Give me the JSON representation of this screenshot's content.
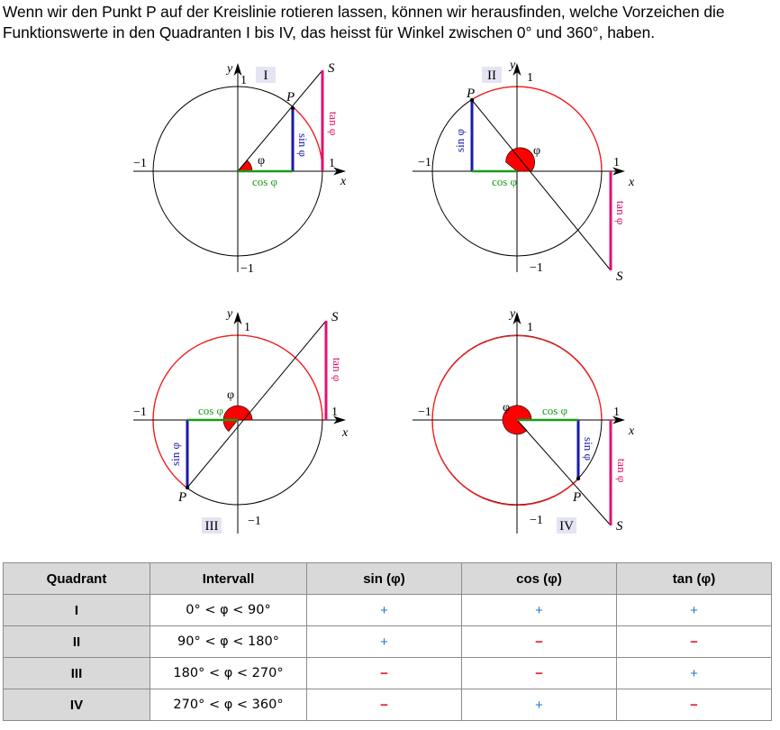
{
  "intro_text": "Wenn wir den Punkt P auf der Kreislinie rotieren lassen, können wir herausfinden, welche Vorzeichen die Funktionswerte in den Quadranten I bis IV, das heisst für Winkel zwischen 0° und 360°, haben.",
  "colors": {
    "red": "#ff1a1a",
    "blue": "#1a1aa8",
    "green": "#1a9a1a",
    "magenta": "#e0136e",
    "gray_header": "#d9d9d9",
    "plus": "#1f77c9",
    "minus": "#e8202a",
    "badge": "#e4e4f4"
  },
  "diagrams": [
    {
      "quadrant": "I",
      "labels": {
        "x": "x",
        "y": "y",
        "one_x": "1",
        "one_y": "1",
        "neg_one_x": "−1",
        "neg_one_y": "−1",
        "P": "P",
        "S": "S",
        "phi": "φ",
        "sin": "sin φ",
        "cos": "cos φ",
        "tan": "tan φ"
      }
    },
    {
      "quadrant": "II",
      "labels": {
        "x": "x",
        "y": "y",
        "one_x": "1",
        "one_y": "1",
        "neg_one_x": "−1",
        "neg_one_y": "−1",
        "P": "P",
        "S": "S",
        "phi": "φ",
        "sin": "sin φ",
        "cos": "cos φ",
        "tan": "tan φ"
      }
    },
    {
      "quadrant": "III",
      "labels": {
        "x": "x",
        "y": "y",
        "one_x": "1",
        "one_y": "1",
        "neg_one_x": "−1",
        "neg_one_y": "−1",
        "P": "P",
        "S": "S",
        "phi": "φ",
        "sin": "sin φ",
        "cos": "cos φ",
        "tan": "tan φ"
      }
    },
    {
      "quadrant": "IV",
      "labels": {
        "x": "x",
        "y": "y",
        "one_x": "1",
        "one_y": "1",
        "neg_one_x": "−1",
        "neg_one_y": "−1",
        "P": "P",
        "S": "S",
        "phi": "φ",
        "sin": "sin φ",
        "cos": "cos φ",
        "tan": "tan φ"
      }
    }
  ],
  "table": {
    "headers": [
      "Quadrant",
      "Intervall",
      "sin (φ)",
      "cos (φ)",
      "tan (φ)"
    ],
    "rows": [
      {
        "quadrant": "I",
        "interval": "0° < φ < 90°",
        "sin": "+",
        "cos": "+",
        "tan": "+"
      },
      {
        "quadrant": "II",
        "interval": "90° < φ < 180°",
        "sin": "+",
        "cos": "−",
        "tan": "−"
      },
      {
        "quadrant": "III",
        "interval": "180° < φ < 270°",
        "sin": "−",
        "cos": "−",
        "tan": "+"
      },
      {
        "quadrant": "IV",
        "interval": "270° < φ < 360°",
        "sin": "−",
        "cos": "+",
        "tan": "−"
      }
    ]
  }
}
